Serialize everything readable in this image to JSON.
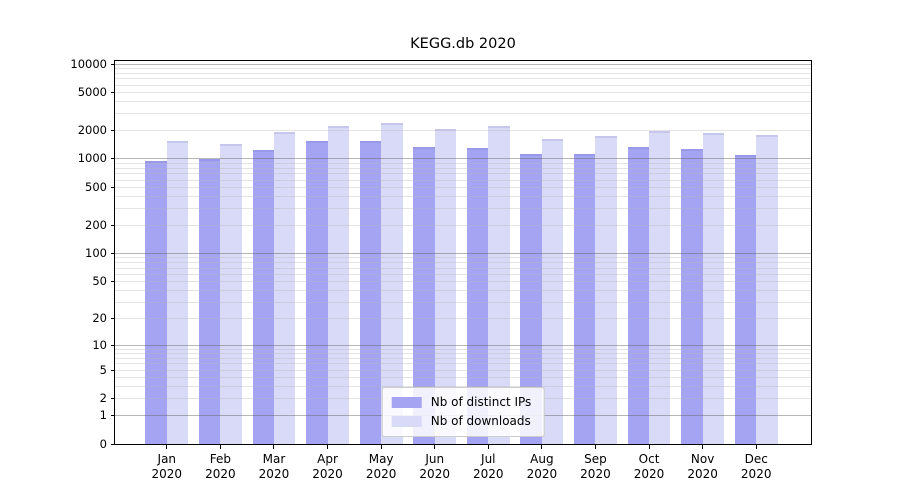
{
  "figure": {
    "title": "KEGG.db 2020"
  },
  "chart_data": {
    "type": "bar",
    "title": "KEGG.db 2020",
    "categories": [
      "Jan 2020",
      "Feb 2020",
      "Mar 2020",
      "Apr 2020",
      "May 2020",
      "Jun 2020",
      "Jul 2020",
      "Aug 2020",
      "Sep 2020",
      "Oct 2020",
      "Nov 2020",
      "Dec 2020"
    ],
    "series": [
      {
        "name": "Nb of distinct IPs",
        "color": "#a4a4f2",
        "values": [
          960,
          1010,
          1240,
          1560,
          1540,
          1340,
          1310,
          1140,
          1130,
          1340,
          1260,
          1100
        ]
      },
      {
        "name": "Nb of downloads",
        "color": "#d9d9f8",
        "values": [
          1560,
          1450,
          1940,
          2230,
          2390,
          2080,
          2240,
          1640,
          1730,
          1950,
          1890,
          1790
        ]
      }
    ],
    "y_axis": {
      "scale": "log1p",
      "ticks": [
        0,
        1,
        2,
        5,
        10,
        20,
        50,
        100,
        200,
        500,
        1000,
        2000,
        5000,
        10000
      ],
      "major_gridlines": [
        1,
        10,
        100,
        1000,
        10000
      ],
      "ylim": [
        0,
        10000
      ]
    },
    "x_axis": {
      "tick_labels_two_lines": true
    },
    "legend_position": "lower center",
    "grid": "horizontal, log minor + major"
  },
  "colors": {
    "background": "#ffffff",
    "axis_frame": "#000000",
    "major_grid": "#b9b9b9",
    "minor_grid": "#e9e9e9",
    "legend_border": "#cccccc",
    "series_ips": "#a4a4f2",
    "series_downloads": "#d9d9f8"
  }
}
